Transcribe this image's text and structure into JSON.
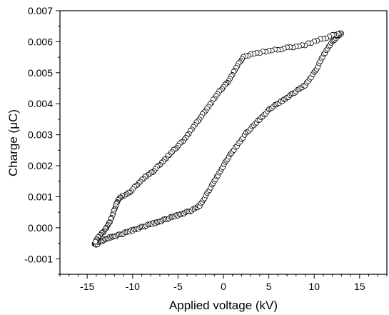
{
  "chart_data": {
    "type": "scatter",
    "title": "",
    "xlabel": "Applied voltage (kV)",
    "ylabel": "Charge (μC)",
    "xlim": [
      -18,
      18
    ],
    "ylim": [
      -0.0015,
      0.007
    ],
    "xticks": [
      {
        "value": -15,
        "label": "-15"
      },
      {
        "value": -10,
        "label": "-10"
      },
      {
        "value": -5,
        "label": "-5"
      },
      {
        "value": 0,
        "label": "0"
      },
      {
        "value": 5,
        "label": "5"
      },
      {
        "value": 10,
        "label": "10"
      },
      {
        "value": 15,
        "label": "15"
      }
    ],
    "yticks": [
      {
        "value": -0.001,
        "label": "-0.001"
      },
      {
        "value": 0.0,
        "label": "0.000"
      },
      {
        "value": 0.001,
        "label": "0.001"
      },
      {
        "value": 0.002,
        "label": "0.002"
      },
      {
        "value": 0.003,
        "label": "0.003"
      },
      {
        "value": 0.004,
        "label": "0.004"
      },
      {
        "value": 0.005,
        "label": "0.005"
      },
      {
        "value": 0.006,
        "label": "0.006"
      },
      {
        "value": 0.007,
        "label": "0.007"
      }
    ],
    "grid": false,
    "marker": "open-circle",
    "series": [
      {
        "points": [
          [
            -14.2,
            -0.0005
          ],
          [
            -14.0,
            -0.00055
          ],
          [
            -13.6,
            -0.00045
          ],
          [
            -13.2,
            -0.0004
          ],
          [
            -12.8,
            -0.00035
          ],
          [
            -12.4,
            -0.0003
          ],
          [
            -12.0,
            -0.00027
          ],
          [
            -11.5,
            -0.00023
          ],
          [
            -11.0,
            -0.00018
          ],
          [
            -10.5,
            -0.00013
          ],
          [
            -10.0,
            -8e-05
          ],
          [
            -9.5,
            -3e-05
          ],
          [
            -9.0,
            2e-05
          ],
          [
            -8.5,
            7e-05
          ],
          [
            -8.0,
            0.00012
          ],
          [
            -7.5,
            0.00016
          ],
          [
            -7.0,
            0.00021
          ],
          [
            -6.5,
            0.00026
          ],
          [
            -6.0,
            0.00031
          ],
          [
            -5.5,
            0.00036
          ],
          [
            -5.0,
            0.00041
          ],
          [
            -4.5,
            0.00046
          ],
          [
            -4.0,
            0.00051
          ],
          [
            -3.5,
            0.00056
          ],
          [
            -3.0,
            0.00064
          ],
          [
            -2.6,
            0.00072
          ],
          [
            -2.2,
            0.0009
          ],
          [
            -1.8,
            0.0011
          ],
          [
            -1.4,
            0.0013
          ],
          [
            -1.0,
            0.0015
          ],
          [
            -0.6,
            0.0017
          ],
          [
            -0.2,
            0.0019
          ],
          [
            0.2,
            0.0021
          ],
          [
            0.6,
            0.0023
          ],
          [
            1.0,
            0.00245
          ],
          [
            1.5,
            0.00265
          ],
          [
            2.0,
            0.00285
          ],
          [
            2.5,
            0.00305
          ],
          [
            3.0,
            0.0032
          ],
          [
            3.5,
            0.00335
          ],
          [
            4.0,
            0.0035
          ],
          [
            4.5,
            0.00365
          ],
          [
            5.0,
            0.0038
          ],
          [
            5.5,
            0.00392
          ],
          [
            6.0,
            0.004
          ],
          [
            6.5,
            0.0041
          ],
          [
            7.0,
            0.0042
          ],
          [
            7.5,
            0.0043
          ],
          [
            8.0,
            0.0044
          ],
          [
            8.5,
            0.0045
          ],
          [
            9.0,
            0.0046
          ],
          [
            9.5,
            0.0048
          ],
          [
            10.0,
            0.005
          ],
          [
            10.4,
            0.0052
          ],
          [
            10.8,
            0.00545
          ],
          [
            11.2,
            0.00565
          ],
          [
            11.6,
            0.00585
          ],
          [
            12.0,
            0.006
          ],
          [
            12.4,
            0.00612
          ],
          [
            12.7,
            0.0062
          ],
          [
            13.0,
            0.00628
          ],
          [
            12.6,
            0.00625
          ],
          [
            12.0,
            0.0062
          ],
          [
            11.0,
            0.0061
          ],
          [
            10.0,
            0.006
          ],
          [
            9.0,
            0.0059
          ],
          [
            8.0,
            0.00585
          ],
          [
            7.0,
            0.0058
          ],
          [
            6.0,
            0.00575
          ],
          [
            5.0,
            0.0057
          ],
          [
            4.0,
            0.00565
          ],
          [
            3.0,
            0.0056
          ],
          [
            2.2,
            0.0055
          ],
          [
            1.8,
            0.00535
          ],
          [
            1.4,
            0.00515
          ],
          [
            1.0,
            0.00495
          ],
          [
            0.6,
            0.00475
          ],
          [
            0.2,
            0.0046
          ],
          [
            -0.3,
            0.00445
          ],
          [
            -0.8,
            0.00425
          ],
          [
            -1.3,
            0.00405
          ],
          [
            -1.8,
            0.00385
          ],
          [
            -2.3,
            0.00365
          ],
          [
            -2.8,
            0.00345
          ],
          [
            -3.3,
            0.00325
          ],
          [
            -3.8,
            0.00305
          ],
          [
            -4.3,
            0.00285
          ],
          [
            -4.8,
            0.0027
          ],
          [
            -5.3,
            0.00255
          ],
          [
            -5.8,
            0.0024
          ],
          [
            -6.3,
            0.00225
          ],
          [
            -6.8,
            0.0021
          ],
          [
            -7.3,
            0.00195
          ],
          [
            -7.8,
            0.0018
          ],
          [
            -8.3,
            0.0017
          ],
          [
            -8.8,
            0.0016
          ],
          [
            -9.3,
            0.00145
          ],
          [
            -9.8,
            0.0013
          ],
          [
            -10.3,
            0.00115
          ],
          [
            -10.8,
            0.00105
          ],
          [
            -11.3,
            0.001
          ],
          [
            -11.6,
            0.0009
          ],
          [
            -11.8,
            0.00075
          ],
          [
            -12.0,
            0.0006
          ],
          [
            -12.2,
            0.0004
          ],
          [
            -12.5,
            0.0002
          ],
          [
            -12.8,
            5e-05
          ],
          [
            -13.0,
            -5e-05
          ],
          [
            -13.3,
            -0.00015
          ],
          [
            -13.6,
            -0.00025
          ],
          [
            -13.9,
            -0.00035
          ],
          [
            -14.1,
            -0.00045
          ]
        ]
      }
    ]
  }
}
